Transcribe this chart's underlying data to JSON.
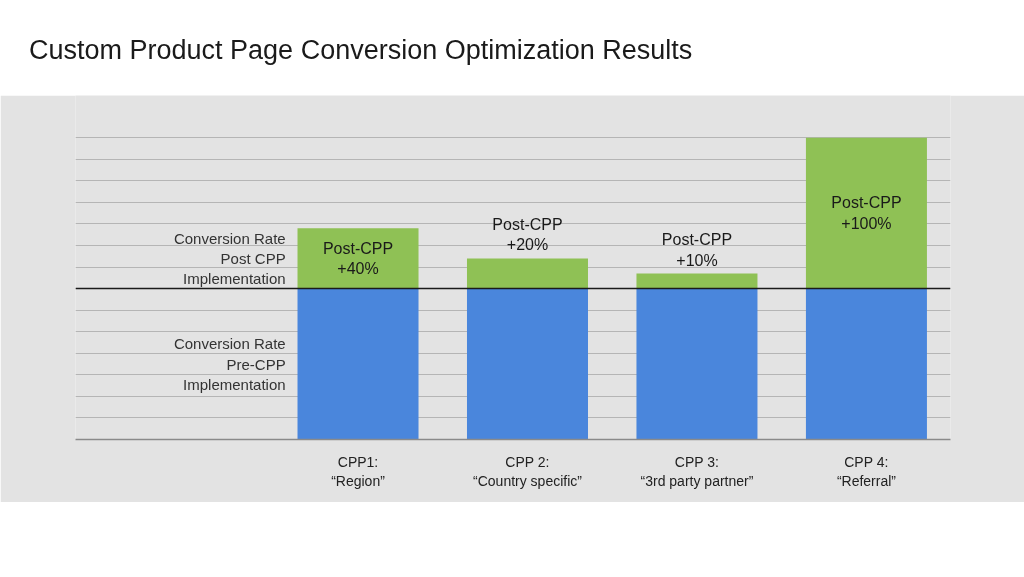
{
  "chart_data": {
    "type": "bar",
    "title": "Custom Product Page Conversion Optimization Results",
    "categories": [
      "CPP1:\n“Region”",
      "CPP 2:\n“Country specific”",
      "CPP 3:\n“3rd party partner”",
      "CPP 4:\n“Referral”"
    ],
    "stacked": true,
    "grid": "y",
    "yticks": [
      {
        "value": 0,
        "label": null
      },
      {
        "value": 14.3,
        "label": null
      },
      {
        "value": 28.6,
        "label": null
      },
      {
        "value": 42.9,
        "label": null
      },
      {
        "value": 57.1,
        "label": null
      },
      {
        "value": 71.4,
        "label": null
      },
      {
        "value": 85.7,
        "label": null
      },
      {
        "value": 100,
        "label": null
      },
      {
        "value": 114.3,
        "label": null
      },
      {
        "value": 128.6,
        "label": null
      },
      {
        "value": 142.9,
        "label": null
      },
      {
        "value": 157.1,
        "label": null
      },
      {
        "value": 171.4,
        "label": null
      },
      {
        "value": 185.7,
        "label": null
      },
      {
        "value": 200,
        "label": null
      }
    ],
    "ref_lines": [
      {
        "axis": "y",
        "value": 100,
        "color": "#1a1a1a"
      }
    ],
    "series": [
      {
        "name": "Conversion Rate\nPre-CPP\nImplementation",
        "color": "#4a86dc",
        "values": [
          100,
          100,
          100,
          100
        ]
      },
      {
        "name": "Conversion Rate\nPost CPP\nImplementation",
        "color": "#8fc155",
        "values": [
          40,
          20,
          10,
          100
        ],
        "value_labels": [
          "Post-CPP\n+40%",
          "Post-CPP\n+20%",
          "Post-CPP\n+10%",
          "Post-CPP\n+100%"
        ]
      }
    ]
  }
}
